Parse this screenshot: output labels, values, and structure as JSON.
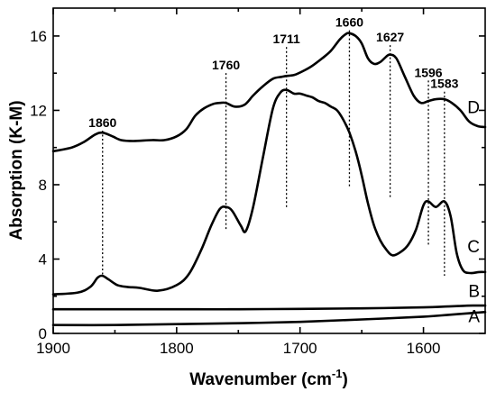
{
  "chart_data": {
    "type": "line",
    "xlabel": "Wavenumber (cm",
    "xlabel_sup": "-1",
    "xlabel_end": ")",
    "ylabel": "Absorption (K-M)",
    "xlim": [
      1900,
      1550
    ],
    "ylim": [
      0,
      17.5
    ],
    "x_reversed": true,
    "x_ticks": [
      1900,
      1800,
      1700,
      1600
    ],
    "y_ticks": [
      0,
      4,
      8,
      12,
      16
    ],
    "grid": false,
    "series": [
      {
        "name": "A",
        "x": [
          1900,
          1850,
          1800,
          1750,
          1700,
          1650,
          1600,
          1580,
          1560,
          1550
        ],
        "y": [
          0.45,
          0.45,
          0.5,
          0.55,
          0.62,
          0.75,
          0.9,
          1.0,
          1.1,
          1.15
        ]
      },
      {
        "name": "B",
        "x": [
          1900,
          1850,
          1800,
          1750,
          1700,
          1650,
          1600,
          1580,
          1560,
          1550
        ],
        "y": [
          1.3,
          1.3,
          1.3,
          1.3,
          1.32,
          1.35,
          1.4,
          1.45,
          1.5,
          1.5
        ]
      },
      {
        "name": "C",
        "x": [
          1900,
          1880,
          1870,
          1864,
          1860,
          1855,
          1848,
          1840,
          1830,
          1815,
          1800,
          1790,
          1780,
          1772,
          1765,
          1760,
          1755,
          1748,
          1744,
          1738,
          1730,
          1722,
          1716,
          1711,
          1705,
          1700,
          1695,
          1690,
          1685,
          1680,
          1675,
          1670,
          1665,
          1660,
          1655,
          1650,
          1645,
          1640,
          1635,
          1630,
          1625,
          1618,
          1612,
          1606,
          1600,
          1596,
          1590,
          1583,
          1578,
          1573,
          1568,
          1562,
          1555,
          1550
        ],
        "y": [
          2.1,
          2.2,
          2.5,
          3.0,
          3.1,
          2.9,
          2.6,
          2.5,
          2.45,
          2.3,
          2.6,
          3.2,
          4.5,
          5.8,
          6.7,
          6.8,
          6.6,
          5.8,
          5.5,
          6.8,
          9.5,
          12.1,
          12.95,
          13.1,
          12.9,
          12.9,
          12.8,
          12.7,
          12.5,
          12.4,
          12.2,
          12.0,
          11.5,
          10.8,
          9.8,
          8.5,
          7.0,
          5.8,
          5.0,
          4.5,
          4.2,
          4.4,
          4.8,
          5.6,
          6.9,
          7.1,
          6.8,
          7.1,
          6.3,
          4.3,
          3.4,
          3.25,
          3.3,
          3.3
        ]
      },
      {
        "name": "D",
        "x": [
          1900,
          1885,
          1875,
          1866,
          1860,
          1852,
          1845,
          1835,
          1820,
          1810,
          1800,
          1792,
          1785,
          1778,
          1770,
          1765,
          1760,
          1753,
          1745,
          1738,
          1730,
          1722,
          1715,
          1711,
          1705,
          1698,
          1690,
          1682,
          1675,
          1668,
          1663,
          1660,
          1655,
          1650,
          1645,
          1640,
          1635,
          1630,
          1627,
          1622,
          1615,
          1608,
          1602,
          1596,
          1590,
          1583,
          1577,
          1570,
          1563,
          1556,
          1550
        ],
        "y": [
          9.8,
          10.0,
          10.3,
          10.7,
          10.8,
          10.6,
          10.4,
          10.35,
          10.4,
          10.4,
          10.6,
          11.0,
          11.7,
          12.1,
          12.35,
          12.4,
          12.4,
          12.2,
          12.3,
          12.8,
          13.3,
          13.7,
          13.8,
          13.85,
          13.9,
          14.1,
          14.4,
          14.8,
          15.2,
          15.8,
          16.1,
          16.15,
          16.0,
          15.6,
          14.8,
          14.5,
          14.6,
          14.9,
          15.0,
          14.8,
          13.8,
          12.8,
          12.4,
          12.5,
          12.6,
          12.6,
          12.4,
          12.0,
          11.4,
          11.15,
          11.1
        ]
      }
    ],
    "series_labels": [
      {
        "text": "A",
        "x": 1550,
        "y": 0.95
      },
      {
        "text": "B",
        "x": 1550,
        "y": 2.3
      },
      {
        "text": "C",
        "x": 1550,
        "y": 4.7
      },
      {
        "text": "D",
        "x": 1550,
        "y": 12.2
      }
    ],
    "peak_annotations": [
      {
        "label": "1860",
        "x": 1860,
        "y_top": 11.1,
        "y_bottom": 3.1
      },
      {
        "label": "1760",
        "x": 1760,
        "y_top": 14.2,
        "y_bottom": 5.5
      },
      {
        "label": "1711",
        "x": 1711,
        "y_top": 15.6,
        "y_bottom": 6.7
      },
      {
        "label": "1660",
        "x": 1660,
        "y_top": 16.5,
        "y_bottom": 7.9
      },
      {
        "label": "1627",
        "x": 1627,
        "y_top": 15.7,
        "y_bottom": 7.3
      },
      {
        "label": "1596",
        "x": 1596,
        "y_top": 13.8,
        "y_bottom": 4.7
      },
      {
        "label": "1583",
        "x": 1583,
        "y_top": 13.2,
        "y_bottom": 3.1
      }
    ]
  }
}
